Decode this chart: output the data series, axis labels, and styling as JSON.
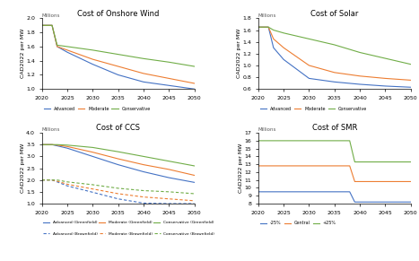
{
  "years": [
    2020,
    2022,
    2023,
    2025,
    2030,
    2035,
    2040,
    2045,
    2050
  ],
  "wind": {
    "title": "Cost of Onshore Wind",
    "ylabel": "CAD2022 per MW",
    "ylim": [
      1.0,
      2.0
    ],
    "yticks": [
      1.0,
      1.2,
      1.4,
      1.6,
      1.8,
      2.0
    ],
    "advanced": [
      1.9,
      1.9,
      1.6,
      1.52,
      1.35,
      1.2,
      1.1,
      1.05,
      1.0
    ],
    "moderate": [
      1.9,
      1.9,
      1.6,
      1.55,
      1.42,
      1.32,
      1.22,
      1.15,
      1.08
    ],
    "conservative": [
      1.9,
      1.9,
      1.62,
      1.6,
      1.55,
      1.49,
      1.43,
      1.38,
      1.32
    ]
  },
  "solar": {
    "title": "Cost of Solar",
    "ylabel": "CAD2022 per MW",
    "ylim": [
      0.6,
      1.8
    ],
    "yticks": [
      0.6,
      0.8,
      1.0,
      1.2,
      1.4,
      1.6,
      1.8
    ],
    "advanced": [
      1.65,
      1.65,
      1.3,
      1.1,
      0.78,
      0.72,
      0.68,
      0.65,
      0.63
    ],
    "moderate": [
      1.65,
      1.65,
      1.45,
      1.3,
      1.0,
      0.88,
      0.82,
      0.78,
      0.75
    ],
    "conservative": [
      1.65,
      1.65,
      1.6,
      1.55,
      1.45,
      1.35,
      1.22,
      1.12,
      1.02
    ]
  },
  "ccs": {
    "title": "Cost of CCS",
    "ylabel": "CAD2022 per MW",
    "ylim": [
      1.0,
      4.0
    ],
    "yticks": [
      1.0,
      1.5,
      2.0,
      2.5,
      3.0,
      3.5,
      4.0
    ],
    "greenfield_advanced": [
      3.5,
      3.5,
      3.45,
      3.35,
      3.0,
      2.65,
      2.35,
      2.1,
      1.9
    ],
    "greenfield_moderate": [
      3.5,
      3.5,
      3.48,
      3.42,
      3.18,
      2.9,
      2.65,
      2.45,
      2.2
    ],
    "greenfield_conservative": [
      3.5,
      3.5,
      3.5,
      3.48,
      3.38,
      3.2,
      3.0,
      2.8,
      2.6
    ],
    "brownfield_advanced": [
      2.0,
      2.0,
      1.92,
      1.75,
      1.48,
      1.2,
      1.02,
      1.0,
      1.0
    ],
    "brownfield_moderate": [
      2.0,
      2.0,
      1.95,
      1.82,
      1.62,
      1.42,
      1.28,
      1.2,
      1.12
    ],
    "brownfield_conservative": [
      2.0,
      2.0,
      2.0,
      1.92,
      1.8,
      1.65,
      1.55,
      1.5,
      1.42
    ]
  },
  "smr": {
    "title": "Cost of SMR",
    "ylabel": "CAD2022 per MW",
    "ylim": [
      8,
      17
    ],
    "yticks": [
      8,
      9,
      10,
      11,
      12,
      13,
      14,
      15,
      16,
      17
    ],
    "minus25_x": [
      2020,
      2022,
      2038,
      2039,
      2050
    ],
    "minus25_y": [
      9.5,
      9.5,
      9.5,
      8.2,
      8.2
    ],
    "central_x": [
      2020,
      2022,
      2038,
      2039,
      2050
    ],
    "central_y": [
      12.8,
      12.8,
      12.8,
      10.8,
      10.8
    ],
    "plus25_x": [
      2020,
      2022,
      2038,
      2039,
      2050
    ],
    "plus25_y": [
      16.0,
      16.0,
      16.0,
      13.3,
      13.3
    ]
  },
  "colors": {
    "advanced": "#4472c4",
    "moderate": "#ed7d31",
    "conservative": "#70ad47",
    "minus25": "#4472c4",
    "central": "#ed7d31",
    "plus25": "#70ad47"
  }
}
